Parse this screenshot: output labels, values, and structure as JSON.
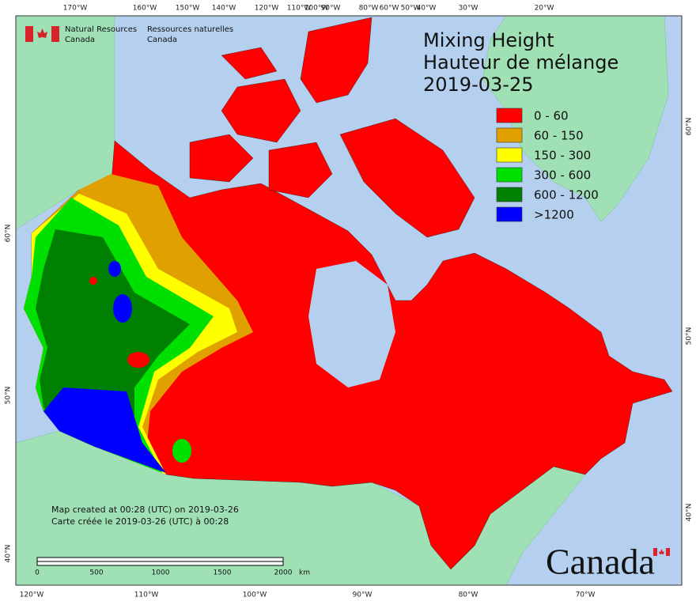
{
  "header": {
    "org_en": [
      "Natural Resources",
      "Canada"
    ],
    "org_fr": [
      "Ressources naturelles",
      "Canada"
    ]
  },
  "title": [
    "Mixing Height",
    "Hauteur de mélange",
    "2019-03-25"
  ],
  "legend": [
    {
      "label": "0 - 60",
      "color": "#ff0000"
    },
    {
      "label": "60 - 150",
      "color": "#e0a000"
    },
    {
      "label": "150 - 300",
      "color": "#ffff00"
    },
    {
      "label": "300 - 600",
      "color": "#00e000"
    },
    {
      "label": "600 - 1200",
      "color": "#008000"
    },
    {
      "label": ">1200",
      "color": "#0000ff"
    }
  ],
  "footnote": [
    "Map created at 00:28 (UTC) on 2019-03-26",
    "Carte créée le 2019-03-26 (UTC) à 00:28"
  ],
  "scale_bar": {
    "ticks": [
      0,
      500,
      1000,
      1500,
      2000
    ],
    "unit": "km"
  },
  "graticule": {
    "top": [
      "170°W",
      "160°W",
      "150°W",
      "140°W",
      "120°W",
      "110°W",
      "100°W",
      "90°W",
      "80°W",
      "60°W",
      "50°W",
      "40°W",
      "30°W",
      "20°W"
    ],
    "bottom": [
      "120°W",
      "110°W",
      "100°W",
      "90°W",
      "80°W",
      "70°W"
    ],
    "left": [
      "60°N",
      "50°N",
      "40°N"
    ],
    "right": [
      "60°N",
      "50°N",
      "40°N"
    ]
  },
  "wordmark": "Canada"
}
